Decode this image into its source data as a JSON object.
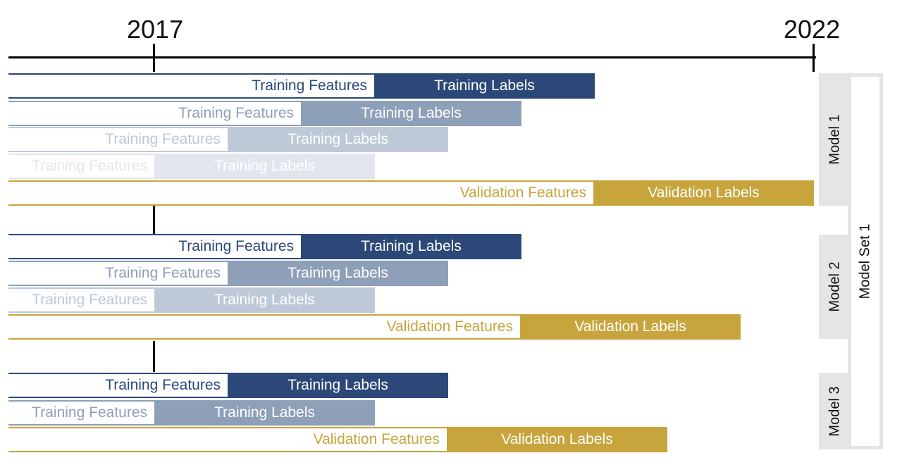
{
  "timeline": {
    "start_year": "2017",
    "end_year": "2022"
  },
  "labels": {
    "training_features": "Training Features",
    "training_labels": "Training Labels",
    "validation_features": "Validation Features",
    "validation_labels": "Validation Labels"
  },
  "groups": [
    {
      "label": "Model 1"
    },
    {
      "label": "Model 2"
    },
    {
      "label": "Model 3"
    }
  ],
  "set_label": "Model Set 1",
  "colors": {
    "training_shades": [
      "#2b4878",
      "#8e9fb8",
      "#bec9d7",
      "#e2e6ec"
    ],
    "validation": "#c8a43c",
    "timeline": "#000000",
    "side_panel": "#e5e5e5"
  }
}
